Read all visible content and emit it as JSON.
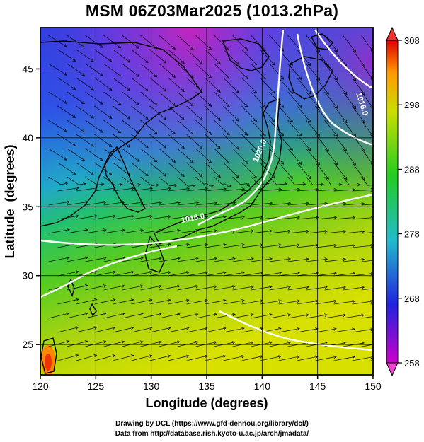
{
  "title": "MSM 06Z03Mar2025 (1013.2hPa)",
  "map": {
    "xlabel": "Longitude (degrees)",
    "ylabel": "Latitude  (degrees)",
    "xlim": [
      120,
      150
    ],
    "ylim": [
      22.8,
      48
    ],
    "xticks": [
      120,
      125,
      130,
      135,
      140,
      145,
      150
    ],
    "yticks": [
      25,
      30,
      35,
      40,
      45
    ],
    "grid": true,
    "isobar_labels": [
      {
        "text": "1020.0",
        "lon": 140.0,
        "lat": 39.0,
        "angle": -68
      },
      {
        "text": "1016.0",
        "lon": 148.8,
        "lat": 42.4,
        "angle": 72
      },
      {
        "text": "1016.0",
        "lon": 133.8,
        "lat": 34.0,
        "angle": -12
      }
    ]
  },
  "colorbar": {
    "min": 258,
    "max": 308,
    "ticks": [
      258,
      268,
      278,
      288,
      298,
      308
    ],
    "colors": [
      "#cc00cc",
      "#2222dd",
      "#22bbcc",
      "#22cc22",
      "#ccdd00",
      "#ff9900",
      "#dd0000"
    ]
  },
  "credits": {
    "line1": "Drawing by DCL (https://www.gfd-dennou.org/library/dcl/)",
    "line2": "Data from http://database.rish.kyoto-u.ac.jp/arch/jmadata/"
  }
}
